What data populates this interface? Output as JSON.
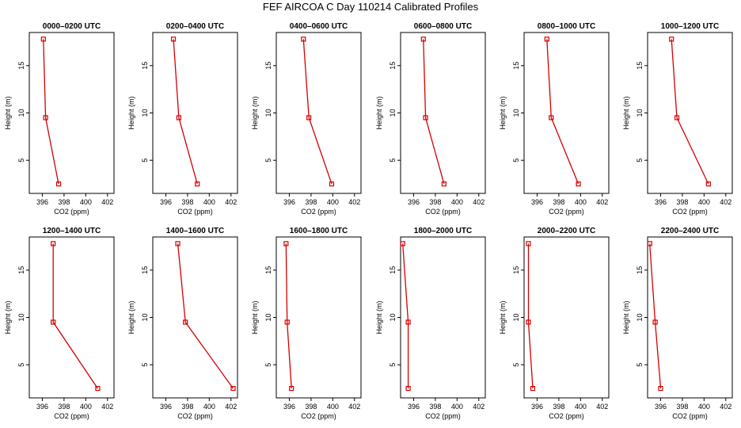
{
  "title": "FEF AIRCOA C  Day 110214  Calibrated Profiles",
  "colors": {
    "series": "#d40000",
    "axes": "#000000"
  },
  "chart_data": [
    {
      "type": "line",
      "title": "0000–0200 UTC",
      "xlabel": "CO2 (ppm)",
      "ylabel": "Height (m)",
      "xlim": [
        394.8,
        402.6
      ],
      "ylim": [
        1.5,
        18.5
      ],
      "xticks": [
        396,
        398,
        400,
        402
      ],
      "yticks": [
        5,
        10,
        15
      ],
      "series": [
        {
          "x": [
            396.1,
            396.3,
            397.5
          ],
          "y": [
            17.8,
            9.5,
            2.5
          ]
        }
      ]
    },
    {
      "type": "line",
      "title": "0200–0400 UTC",
      "xlabel": "CO2 (ppm)",
      "ylabel": "Height (m)",
      "xlim": [
        394.8,
        402.6
      ],
      "ylim": [
        1.5,
        18.5
      ],
      "xticks": [
        396,
        398,
        400,
        402
      ],
      "yticks": [
        5,
        10,
        15
      ],
      "series": [
        {
          "x": [
            396.7,
            397.2,
            398.9
          ],
          "y": [
            17.8,
            9.5,
            2.5
          ]
        }
      ]
    },
    {
      "type": "line",
      "title": "0400–0600 UTC",
      "xlabel": "CO2 (ppm)",
      "ylabel": "Height (m)",
      "xlim": [
        394.8,
        402.6
      ],
      "ylim": [
        1.5,
        18.5
      ],
      "xticks": [
        396,
        398,
        400,
        402
      ],
      "yticks": [
        5,
        10,
        15
      ],
      "series": [
        {
          "x": [
            397.3,
            397.8,
            399.9
          ],
          "y": [
            17.8,
            9.5,
            2.5
          ]
        }
      ]
    },
    {
      "type": "line",
      "title": "0600–0800 UTC",
      "xlabel": "CO2 (ppm)",
      "ylabel": "Height (m)",
      "xlim": [
        394.8,
        402.6
      ],
      "ylim": [
        1.5,
        18.5
      ],
      "xticks": [
        396,
        398,
        400,
        402
      ],
      "yticks": [
        5,
        10,
        15
      ],
      "series": [
        {
          "x": [
            396.9,
            397.1,
            398.8
          ],
          "y": [
            17.8,
            9.5,
            2.5
          ]
        }
      ]
    },
    {
      "type": "line",
      "title": "0800–1000 UTC",
      "xlabel": "CO2 (ppm)",
      "ylabel": "Height (m)",
      "xlim": [
        394.8,
        402.6
      ],
      "ylim": [
        1.5,
        18.5
      ],
      "xticks": [
        396,
        398,
        400,
        402
      ],
      "yticks": [
        5,
        10,
        15
      ],
      "series": [
        {
          "x": [
            396.9,
            397.3,
            399.8
          ],
          "y": [
            17.8,
            9.5,
            2.5
          ]
        }
      ]
    },
    {
      "type": "line",
      "title": "1000–1200 UTC",
      "xlabel": "CO2 (ppm)",
      "ylabel": "Height (m)",
      "xlim": [
        394.8,
        402.6
      ],
      "ylim": [
        1.5,
        18.5
      ],
      "xticks": [
        396,
        398,
        400,
        402
      ],
      "yticks": [
        5,
        10,
        15
      ],
      "series": [
        {
          "x": [
            397.0,
            397.5,
            400.4
          ],
          "y": [
            17.8,
            9.5,
            2.5
          ]
        }
      ]
    },
    {
      "type": "line",
      "title": "1200–1400 UTC",
      "xlabel": "CO2 (ppm)",
      "ylabel": "Height (m)",
      "xlim": [
        394.8,
        402.6
      ],
      "ylim": [
        1.5,
        18.5
      ],
      "xticks": [
        396,
        398,
        400,
        402
      ],
      "yticks": [
        5,
        10,
        15
      ],
      "series": [
        {
          "x": [
            397.0,
            397.0,
            401.1
          ],
          "y": [
            17.8,
            9.5,
            2.5
          ]
        }
      ]
    },
    {
      "type": "line",
      "title": "1400–1600 UTC",
      "xlabel": "CO2 (ppm)",
      "ylabel": "Height (m)",
      "xlim": [
        394.8,
        402.6
      ],
      "ylim": [
        1.5,
        18.5
      ],
      "xticks": [
        396,
        398,
        400,
        402
      ],
      "yticks": [
        5,
        10,
        15
      ],
      "series": [
        {
          "x": [
            397.1,
            397.8,
            402.2
          ],
          "y": [
            17.8,
            9.5,
            2.5
          ]
        }
      ]
    },
    {
      "type": "line",
      "title": "1600–1800 UTC",
      "xlabel": "CO2 (ppm)",
      "ylabel": "Height (m)",
      "xlim": [
        394.8,
        402.6
      ],
      "ylim": [
        1.5,
        18.5
      ],
      "xticks": [
        396,
        398,
        400,
        402
      ],
      "yticks": [
        5,
        10,
        15
      ],
      "series": [
        {
          "x": [
            395.7,
            395.8,
            396.2
          ],
          "y": [
            17.8,
            9.5,
            2.5
          ]
        }
      ]
    },
    {
      "type": "line",
      "title": "1800–2000 UTC",
      "xlabel": "CO2 (ppm)",
      "ylabel": "Height (m)",
      "xlim": [
        394.8,
        402.6
      ],
      "ylim": [
        1.5,
        18.5
      ],
      "xticks": [
        396,
        398,
        400,
        402
      ],
      "yticks": [
        5,
        10,
        15
      ],
      "series": [
        {
          "x": [
            395.0,
            395.5,
            395.5
          ],
          "y": [
            17.8,
            9.5,
            2.5
          ]
        }
      ]
    },
    {
      "type": "line",
      "title": "2000–2200 UTC",
      "xlabel": "CO2 (ppm)",
      "ylabel": "Height (m)",
      "xlim": [
        394.8,
        402.6
      ],
      "ylim": [
        1.5,
        18.5
      ],
      "xticks": [
        396,
        398,
        400,
        402
      ],
      "yticks": [
        5,
        10,
        15
      ],
      "series": [
        {
          "x": [
            395.2,
            395.2,
            395.6
          ],
          "y": [
            17.8,
            9.5,
            2.5
          ]
        }
      ]
    },
    {
      "type": "line",
      "title": "2200–2400 UTC",
      "xlabel": "CO2 (ppm)",
      "ylabel": "Height (m)",
      "xlim": [
        394.8,
        402.6
      ],
      "ylim": [
        1.5,
        18.5
      ],
      "xticks": [
        396,
        398,
        400,
        402
      ],
      "yticks": [
        5,
        10,
        15
      ],
      "series": [
        {
          "x": [
            395.0,
            395.5,
            396.0
          ],
          "y": [
            17.8,
            9.5,
            2.5
          ]
        }
      ]
    }
  ]
}
